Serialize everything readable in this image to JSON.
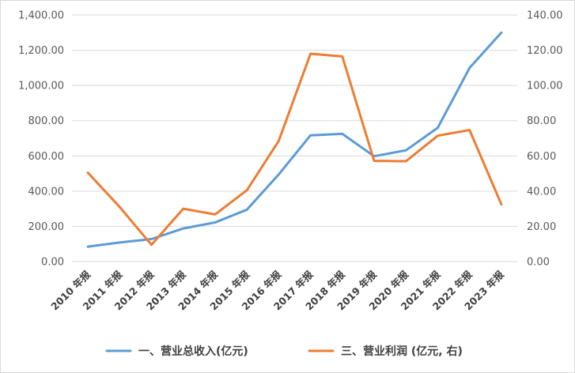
{
  "chart_data": {
    "type": "line",
    "title": "",
    "xlabel": "",
    "ylabel": "",
    "grid": true,
    "legend_position": "bottom",
    "categories": [
      "2010 年报",
      "2011 年报",
      "2012 年报",
      "2013 年报",
      "2014 年报",
      "2015 年报",
      "2016 年报",
      "2017 年报",
      "2018 年报",
      "2019 年报",
      "2020 年报",
      "2021 年报",
      "2022 年报",
      "2023 年报"
    ],
    "y_left": {
      "min": 0,
      "max": 1400,
      "ticks": [
        0,
        200,
        400,
        600,
        800,
        1000,
        1200,
        1400
      ],
      "tick_labels": [
        "0.00",
        "200.00",
        "400.00",
        "600.00",
        "800.00",
        "1,000.00",
        "1,200.00",
        "1,400.00"
      ]
    },
    "y_right": {
      "min": 0,
      "max": 140,
      "ticks": [
        0,
        20,
        40,
        60,
        80,
        100,
        120,
        140
      ],
      "tick_labels": [
        "0.00",
        "20.00",
        "40.00",
        "60.00",
        "80.00",
        "100.00",
        "120.00",
        "140.00"
      ]
    },
    "series": [
      {
        "name": "一、营业总收入(亿元)",
        "axis": "left",
        "color": "#5b9bd5",
        "values": [
          85,
          108,
          128,
          188,
          222,
          295,
          495,
          717,
          725,
          598,
          632,
          760,
          1100,
          1300
        ]
      },
      {
        "name": "三、营业利润 (亿元, 右)",
        "axis": "right",
        "color": "#ed7d31",
        "values": [
          50.5,
          31,
          9.5,
          30,
          26.8,
          40.5,
          68.5,
          118,
          116.5,
          57.2,
          57,
          71.5,
          74.7,
          32.5
        ]
      }
    ]
  }
}
